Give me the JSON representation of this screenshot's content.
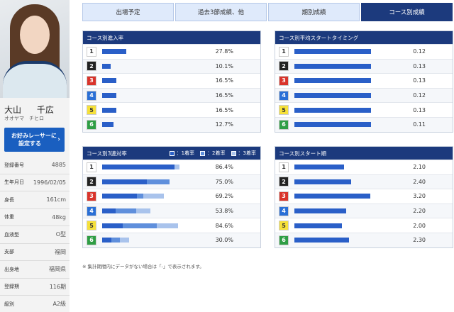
{
  "racer": {
    "family_name": "大山",
    "given_name": "千広",
    "kana": "オオヤマ　チヒロ",
    "favorite_button": [
      "お好みレーサーに",
      "設定する"
    ],
    "favorite_arrow": "›",
    "info": [
      {
        "label": "登録番号",
        "value": "4885"
      },
      {
        "label": "生年月日",
        "value": "1996/02/05"
      },
      {
        "label": "身長",
        "value": "161cm"
      },
      {
        "label": "体重",
        "value": "48kg"
      },
      {
        "label": "血液型",
        "value": "O型"
      },
      {
        "label": "支部",
        "value": "福岡"
      },
      {
        "label": "出身地",
        "value": "福岡県"
      },
      {
        "label": "登録期",
        "value": "116期"
      },
      {
        "label": "級別",
        "value": "A2級"
      }
    ]
  },
  "tabs": [
    {
      "label": "出場予定",
      "active": false
    },
    {
      "label": "過去3節成績、他",
      "active": false
    },
    {
      "label": "期別成績",
      "active": false
    },
    {
      "label": "コース別成績",
      "active": true
    }
  ],
  "badges": [
    {
      "num": "1",
      "bg": "#ffffff",
      "fg": "#333333"
    },
    {
      "num": "2",
      "bg": "#222222",
      "fg": "#ffffff"
    },
    {
      "num": "3",
      "bg": "#d9342b",
      "fg": "#ffffff"
    },
    {
      "num": "4",
      "bg": "#2a6fd6",
      "fg": "#ffffff"
    },
    {
      "num": "5",
      "bg": "#f6e13a",
      "fg": "#333333"
    },
    {
      "num": "6",
      "bg": "#2f9e45",
      "fg": "#ffffff"
    }
  ],
  "colors": {
    "bar": "#2a5fc8",
    "bar2": "#5f8fdc",
    "bar3": "#a9c3ec",
    "header": "#1c3a7d"
  },
  "panels": {
    "entry_rate": {
      "title": "コース別進入率",
      "max": 100,
      "rows": [
        {
          "value": 27.8,
          "label": "27.8%"
        },
        {
          "value": 10.1,
          "label": "10.1%"
        },
        {
          "value": 16.5,
          "label": "16.5%"
        },
        {
          "value": 16.5,
          "label": "16.5%"
        },
        {
          "value": 16.5,
          "label": "16.5%"
        },
        {
          "value": 12.7,
          "label": "12.7%"
        }
      ]
    },
    "start_timing": {
      "title": "コース別平均スタートタイミング",
      "rows": [
        {
          "value": 0.12,
          "label": "0.12"
        },
        {
          "value": 0.13,
          "label": "0.13"
        },
        {
          "value": 0.13,
          "label": "0.13"
        },
        {
          "value": 0.12,
          "label": "0.12"
        },
        {
          "value": 0.13,
          "label": "0.13"
        },
        {
          "value": 0.11,
          "label": "0.11"
        }
      ]
    },
    "top3_rate": {
      "title": "コース別3連対率",
      "legend": [
        "：1着率",
        "：2着率",
        "：3着率"
      ],
      "max": 100,
      "rows": [
        {
          "segments": [
            81.0,
            0,
            5.4
          ],
          "label": "86.4%"
        },
        {
          "segments": [
            50.0,
            25.0,
            0
          ],
          "label": "75.0%"
        },
        {
          "segments": [
            38.5,
            7.7,
            23.0
          ],
          "label": "69.2%"
        },
        {
          "segments": [
            15.4,
            23.0,
            15.4
          ],
          "label": "53.8%"
        },
        {
          "segments": [
            23.0,
            38.5,
            23.1
          ],
          "label": "84.6%"
        },
        {
          "segments": [
            10.0,
            10.0,
            10.0
          ],
          "label": "30.0%"
        }
      ]
    },
    "start_position": {
      "title": "コース別スタート順",
      "max": 3.0,
      "rows": [
        {
          "value": 2.1,
          "label": "2.10"
        },
        {
          "value": 2.4,
          "label": "2.40"
        },
        {
          "value": 3.2,
          "label": "3.20"
        },
        {
          "value": 2.2,
          "label": "2.20"
        },
        {
          "value": 2.0,
          "label": "2.00"
        },
        {
          "value": 2.3,
          "label": "2.30"
        }
      ]
    }
  },
  "footnote": "※ 集計期間内にデータがない場合は「-」で表示されます。"
}
